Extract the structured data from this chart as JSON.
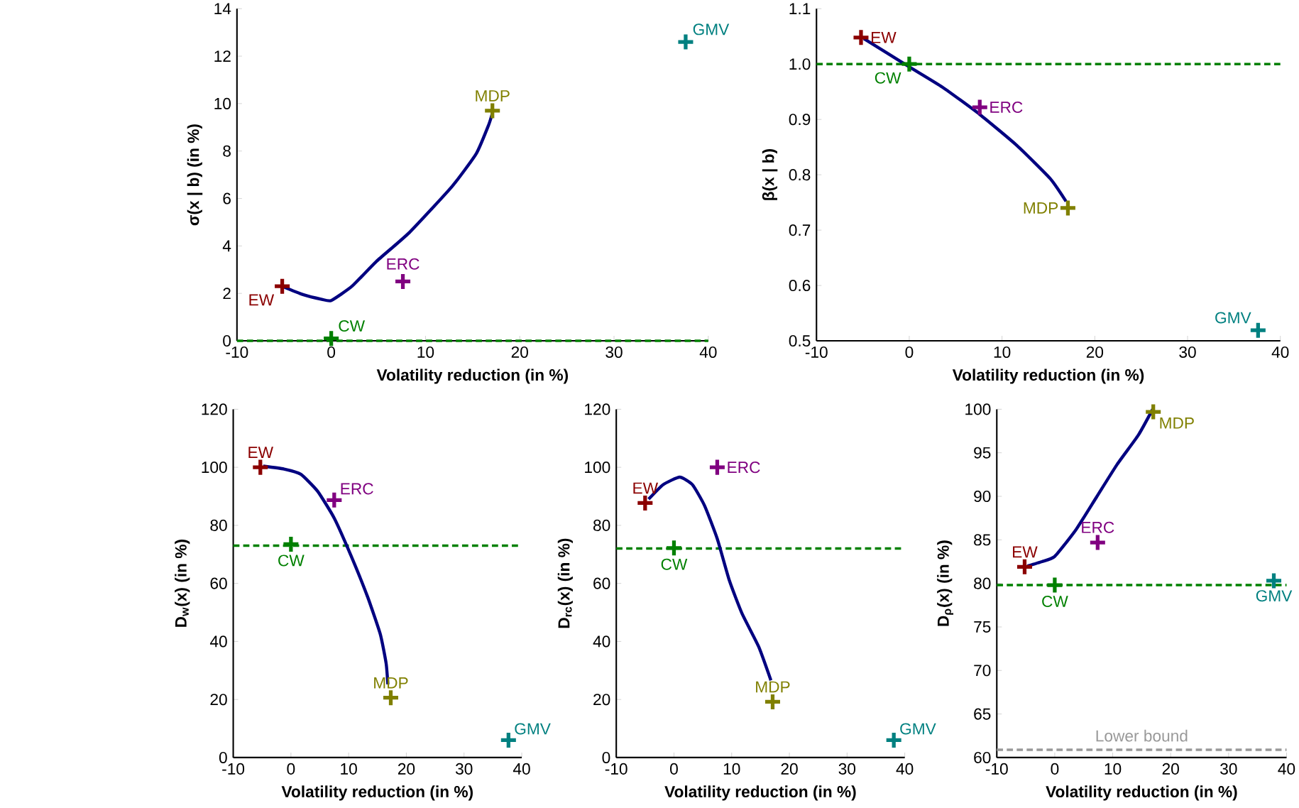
{
  "chart_data": [
    {
      "type": "scatter",
      "xlabel": "Volatility reduction (in %)",
      "ylabel": "σ(x | b) (in %)",
      "xlim": [
        -10,
        40
      ],
      "xticks": [
        -10,
        0,
        10,
        20,
        30,
        40
      ],
      "ylim": [
        0,
        14
      ],
      "yticks": [
        0,
        2,
        4,
        6,
        8,
        10,
        12,
        14
      ],
      "marker": "cross",
      "ref_lines": [
        {
          "axis": "y",
          "value": 0,
          "color": "#008000",
          "line_style": "dashed"
        }
      ],
      "series": [
        {
          "type": "line",
          "marker": "none",
          "color": "#000080",
          "x": [
            -5.2,
            -3,
            -1,
            0,
            2.2,
            4.8,
            8.3,
            12.8,
            15.4,
            16.7,
            17.1
          ],
          "values": [
            2.3,
            1.95,
            1.75,
            1.7,
            2.3,
            3.35,
            4.57,
            6.5,
            7.9,
            9.1,
            9.6
          ]
        },
        {
          "name": "EW",
          "color": "#8b0000",
          "x": [
            -5.2
          ],
          "values": [
            2.3
          ]
        },
        {
          "name": "CW",
          "color": "#008000",
          "x": [
            0
          ],
          "values": [
            0.1
          ]
        },
        {
          "name": "ERC",
          "color": "#800080",
          "x": [
            7.6
          ],
          "values": [
            2.5
          ]
        },
        {
          "name": "MDP",
          "color": "#808000",
          "x": [
            17.1
          ],
          "values": [
            9.7
          ]
        },
        {
          "name": "GMV",
          "color": "#008080",
          "x": [
            37.6
          ],
          "values": [
            12.6
          ]
        }
      ]
    },
    {
      "type": "scatter",
      "xlabel": "Volatility reduction (in %)",
      "ylabel": "β(x | b)",
      "xlim": [
        -10,
        40
      ],
      "xticks": [
        -10,
        0,
        10,
        20,
        30,
        40
      ],
      "ylim": [
        0.5,
        1.1
      ],
      "yticks": [
        0.5,
        0.6,
        0.7,
        0.8,
        0.9,
        {
          "value": 1,
          "label": "1.0"
        },
        1.1
      ],
      "marker": "cross",
      "ref_lines": [
        {
          "axis": "y",
          "value": 1,
          "color": "#008000",
          "line_style": "dashed"
        }
      ],
      "series": [
        {
          "type": "line",
          "marker": "none",
          "color": "#000080",
          "x": [
            -4.9,
            0,
            3.6,
            7.6,
            11.6,
            15.2,
            16.9
          ],
          "values": [
            1.046,
            0.995,
            0.958,
            0.909,
            0.853,
            0.793,
            0.752
          ]
        },
        {
          "name": "EW",
          "color": "#8b0000",
          "x": [
            -5.2
          ],
          "values": [
            1.048
          ]
        },
        {
          "name": "CW",
          "color": "#008000",
          "x": [
            0
          ],
          "values": [
            1.0
          ]
        },
        {
          "name": "ERC",
          "color": "#800080",
          "x": [
            7.6
          ],
          "values": [
            0.922
          ]
        },
        {
          "name": "MDP",
          "color": "#808000",
          "x": [
            17.1
          ],
          "values": [
            0.74
          ]
        },
        {
          "name": "GMV",
          "color": "#008080",
          "x": [
            37.6
          ],
          "values": [
            0.519
          ]
        }
      ]
    },
    {
      "type": "scatter",
      "xlabel": "Volatility reduction (in %)",
      "ylabel": "D$_{w}$(x) (in %)",
      "xlim": [
        -10,
        40
      ],
      "xticks": [
        -10,
        0,
        10,
        20,
        30,
        40
      ],
      "ylim": [
        0,
        120
      ],
      "yticks": [
        0,
        20,
        40,
        60,
        80,
        100,
        120
      ],
      "marker": "cross",
      "ref_lines": [
        {
          "axis": "y",
          "value": 73,
          "color": "#008000",
          "line_style": "dashed"
        }
      ],
      "series": [
        {
          "type": "line",
          "marker": "none",
          "color": "#000080",
          "x": [
            -4.8,
            -1.2,
            1.7,
            4.6,
            7.5,
            10.4,
            13.3,
            15.5,
            16.5,
            16.8
          ],
          "values": [
            100.4,
            99.4,
            97.6,
            91.8,
            82.5,
            69.6,
            55.3,
            42.4,
            32.4,
            25.2
          ]
        },
        {
          "name": "EW",
          "color": "#8b0000",
          "x": [
            -5.3
          ],
          "values": [
            100
          ]
        },
        {
          "name": "CW",
          "color": "#008000",
          "x": [
            0
          ],
          "values": [
            73.5
          ]
        },
        {
          "name": "ERC",
          "color": "#800080",
          "x": [
            7.5
          ],
          "values": [
            88.7
          ]
        },
        {
          "name": "MDP",
          "color": "#808000",
          "x": [
            17.3
          ],
          "values": [
            20.6
          ]
        },
        {
          "name": "GMV",
          "color": "#008080",
          "x": [
            37.7
          ],
          "values": [
            6
          ]
        }
      ]
    },
    {
      "type": "scatter",
      "xlabel": "Volatility reduction (in %)",
      "ylabel": "D$_{rc}$(x) (in %)",
      "xlim": [
        -10,
        40
      ],
      "xticks": [
        -10,
        0,
        10,
        20,
        30,
        40
      ],
      "ylim": [
        0,
        120
      ],
      "yticks": [
        0,
        20,
        40,
        60,
        80,
        100,
        120
      ],
      "marker": "cross",
      "ref_lines": [
        {
          "axis": "y",
          "value": 72,
          "color": "#008000",
          "line_style": "dashed"
        }
      ],
      "series": [
        {
          "type": "line",
          "marker": "none",
          "color": "#000080",
          "x": [
            -4.4,
            -1.9,
            1.0,
            3.2,
            5.3,
            7.5,
            9.6,
            11.8,
            14.7,
            16.8
          ],
          "values": [
            89,
            94,
            96.6,
            94,
            86.8,
            75.4,
            61,
            49.6,
            38.1,
            26.6
          ]
        },
        {
          "name": "EW",
          "color": "#8b0000",
          "x": [
            -5.0
          ],
          "values": [
            87.7
          ]
        },
        {
          "name": "CW",
          "color": "#008000",
          "x": [
            0
          ],
          "values": [
            72.2
          ]
        },
        {
          "name": "ERC",
          "color": "#800080",
          "x": [
            7.5
          ],
          "values": [
            100
          ]
        },
        {
          "name": "MDP",
          "color": "#808000",
          "x": [
            17.1
          ],
          "values": [
            19.2
          ]
        },
        {
          "name": "GMV",
          "color": "#008080",
          "x": [
            38.1
          ],
          "values": [
            6
          ]
        }
      ]
    },
    {
      "type": "scatter",
      "xlabel": "Volatility reduction (in %)",
      "ylabel": "D$_{ρ}$(x) (in %)",
      "xlim": [
        -10,
        40
      ],
      "xticks": [
        -10,
        0,
        10,
        20,
        30,
        40
      ],
      "ylim": [
        60,
        100
      ],
      "yticks": [
        60,
        65,
        70,
        75,
        80,
        85,
        90,
        95,
        100
      ],
      "marker": "cross",
      "ref_lines": [
        {
          "axis": "y",
          "value": 79.8,
          "color": "#008000",
          "line_style": "dashed"
        },
        {
          "axis": "y",
          "value": 60.9,
          "label": "Lower bound",
          "color": "#999999",
          "line_style": "dashed"
        }
      ],
      "series": [
        {
          "type": "line",
          "marker": "none",
          "color": "#000080",
          "x": [
            -4.7,
            -2.2,
            0,
            3.6,
            7.2,
            10.8,
            14.4,
            16.9
          ],
          "values": [
            82.0,
            82.5,
            83.1,
            86.1,
            89.9,
            93.7,
            97.0,
            100
          ]
        },
        {
          "name": "EW",
          "color": "#8b0000",
          "x": [
            -5.2
          ],
          "values": [
            81.9
          ]
        },
        {
          "name": "CW",
          "color": "#008000",
          "x": [
            0
          ],
          "values": [
            79.8
          ]
        },
        {
          "name": "ERC",
          "color": "#800080",
          "x": [
            7.4
          ],
          "values": [
            84.7
          ]
        },
        {
          "name": "MDP",
          "color": "#808000",
          "x": [
            17.0
          ],
          "values": [
            99.7
          ]
        },
        {
          "name": "GMV",
          "color": "#008080",
          "x": [
            37.8
          ],
          "values": [
            80.3
          ]
        }
      ]
    }
  ]
}
